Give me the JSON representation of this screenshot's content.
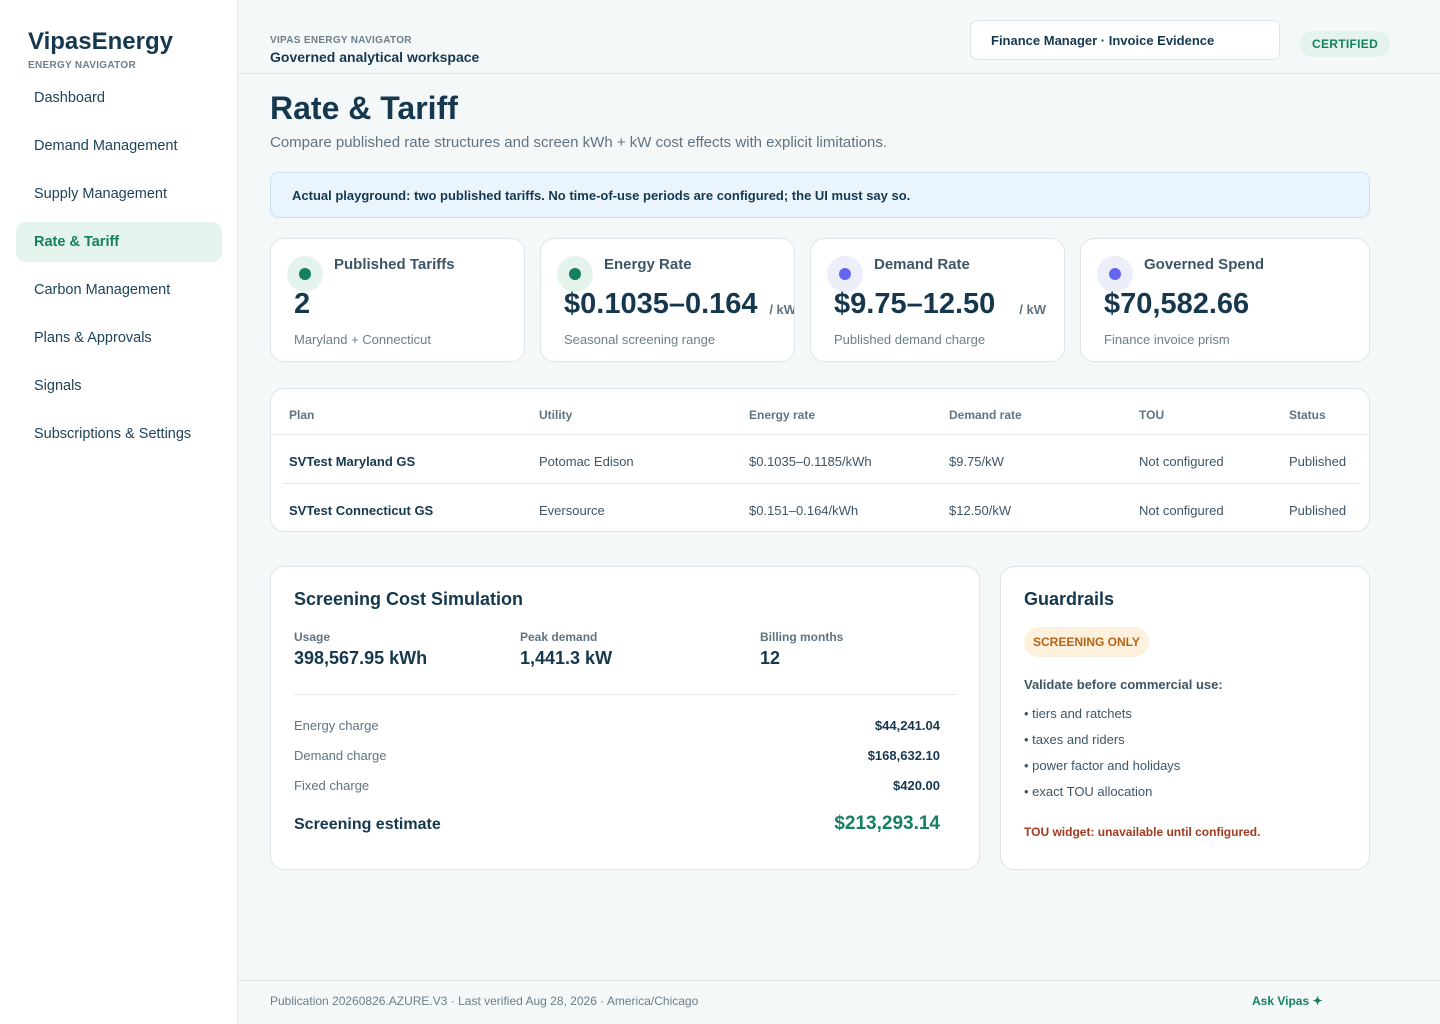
{
  "brand": {
    "name": "VipasEnergy",
    "subtitle": "ENERGY NAVIGATOR"
  },
  "nav": {
    "items": [
      {
        "label": "Dashboard"
      },
      {
        "label": "Demand Management"
      },
      {
        "label": "Supply Management"
      },
      {
        "label": "Rate & Tariff",
        "active": true
      },
      {
        "label": "Carbon Management"
      },
      {
        "label": "Plans & Approvals"
      },
      {
        "label": "Signals"
      },
      {
        "label": "Subscriptions & Settings"
      }
    ]
  },
  "header": {
    "kicker": "VIPAS ENERGY NAVIGATOR",
    "title": "Governed analytical workspace",
    "role_selector": "Finance Manager · Invoice Evidence",
    "certified_badge": "CERTIFIED"
  },
  "page": {
    "title": "Rate & Tariff",
    "subtitle": "Compare published rate structures and screen kWh + kW cost effects with explicit limitations.",
    "notice": "Actual playground: two published tariffs. No time-of-use periods are configured; the UI must say so."
  },
  "kpis": [
    {
      "label": "Published Tariffs",
      "value": "2",
      "unit": "",
      "caption": "Maryland + Connecticut",
      "dot_color": "#168060"
    },
    {
      "label": "Energy Rate",
      "value": "$0.1035–0.164",
      "unit": "/ kWh",
      "caption": "Seasonal screening range",
      "dot_color": "#168060"
    },
    {
      "label": "Demand Rate",
      "value": "$9.75–12.50",
      "unit": "/ kW",
      "caption": "Published demand charge",
      "dot_color": "#6366f1"
    },
    {
      "label": "Governed Spend",
      "value": "$70,582.66",
      "unit": "",
      "caption": "Finance invoice prism",
      "dot_color": "#6366f1"
    }
  ],
  "tariff_table": {
    "columns": [
      "Plan",
      "Utility",
      "Energy rate",
      "Demand rate",
      "TOU",
      "Status"
    ],
    "rows": [
      [
        "SVTest Maryland GS",
        "Potomac Edison",
        "$0.1035–0.1185/kWh",
        "$9.75/kW",
        "Not configured",
        "Published"
      ],
      [
        "SVTest Connecticut GS",
        "Eversource",
        "$0.151–0.164/kWh",
        "$12.50/kW",
        "Not configured",
        "Published"
      ]
    ]
  },
  "simulation": {
    "title": "Screening Cost Simulation",
    "metrics": [
      {
        "label": "Usage",
        "value": "398,567.95 kWh"
      },
      {
        "label": "Peak demand",
        "value": "1,441.3 kW"
      },
      {
        "label": "Billing months",
        "value": "12"
      }
    ],
    "lines": [
      {
        "label": "Energy charge",
        "value": "$44,241.04"
      },
      {
        "label": "Demand charge",
        "value": "$168,632.10"
      },
      {
        "label": "Fixed charge",
        "value": "$420.00"
      }
    ],
    "total_label": "Screening estimate",
    "total_value": "$213,293.14"
  },
  "guardrails": {
    "title": "Guardrails",
    "badge": "SCREENING ONLY",
    "heading": "Validate before commercial use:",
    "items": [
      "• tiers and ratchets",
      "• taxes and riders",
      "• power factor and holidays",
      "• exact TOU allocation"
    ],
    "warning": "TOU widget: unavailable until configured."
  },
  "footer": {
    "text": "Publication 20260826.AZURE.V3 · Last verified Aug 28, 2026 · America/Chicago",
    "ask": "Ask Vipas ✦"
  },
  "colors": {
    "accent": "#168060",
    "violet": "#6366f1",
    "text": "#16384f",
    "warning": "#a33a1f"
  }
}
